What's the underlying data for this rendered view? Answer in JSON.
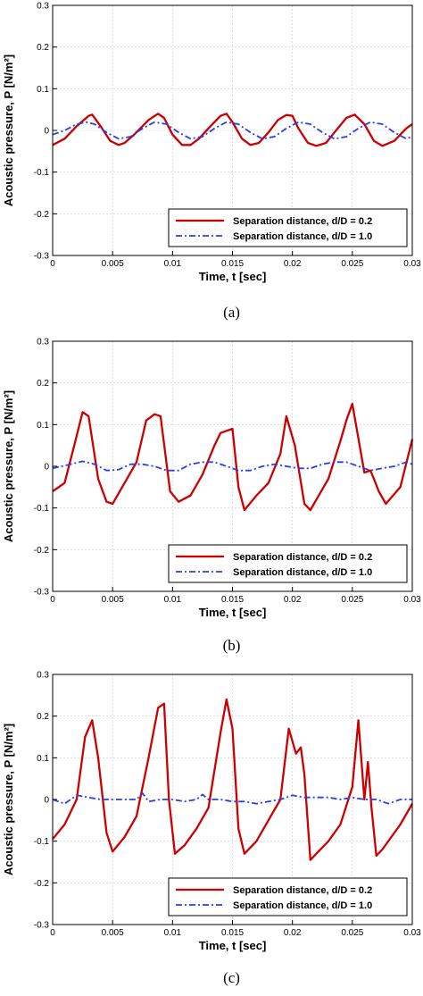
{
  "chart_data": [
    {
      "type": "line",
      "panel": "(a)",
      "xlabel": "Time, t [sec]",
      "ylabel": "Acoustic pressure, P [N/m²]",
      "xlim": [
        0,
        0.03
      ],
      "ylim": [
        -0.3,
        0.3
      ],
      "xticks": [
        0,
        0.005,
        0.01,
        0.015,
        0.02,
        0.025,
        0.03
      ],
      "xtick_labels": [
        "0",
        "0.005",
        "0.01",
        "0.015",
        "0.02",
        "0.025",
        "0.03"
      ],
      "yticks": [
        -0.3,
        -0.2,
        -0.1,
        0,
        0.1,
        0.2,
        0.3
      ],
      "ytick_labels": [
        "-0.3",
        "-0.2",
        "-0.1",
        "0",
        "0.1",
        "0.2",
        "0.3"
      ],
      "grid": true,
      "legend_position": "bottom-right",
      "series": [
        {
          "name": "Separation distance, d/D = 0.2",
          "color": "#cc0000",
          "style": "solid",
          "x": [
            0,
            0.001,
            0.002,
            0.003,
            0.0033,
            0.004,
            0.0048,
            0.0055,
            0.006,
            0.0068,
            0.008,
            0.0088,
            0.0093,
            0.01,
            0.0108,
            0.0115,
            0.0122,
            0.013,
            0.014,
            0.0145,
            0.015,
            0.0158,
            0.0165,
            0.0172,
            0.018,
            0.0188,
            0.0195,
            0.02,
            0.0205,
            0.0213,
            0.022,
            0.0228,
            0.0235,
            0.0245,
            0.0252,
            0.026,
            0.0268,
            0.0275,
            0.0285,
            0.0295,
            0.03
          ],
          "y": [
            -0.035,
            -0.02,
            0.01,
            0.035,
            0.038,
            0.01,
            -0.025,
            -0.035,
            -0.03,
            -0.01,
            0.025,
            0.04,
            0.03,
            -0.01,
            -0.035,
            -0.035,
            -0.02,
            0.005,
            0.035,
            0.04,
            0.02,
            -0.02,
            -0.035,
            -0.03,
            -0.005,
            0.025,
            0.037,
            0.035,
            0.005,
            -0.03,
            -0.037,
            -0.03,
            -0.005,
            0.03,
            0.038,
            0.015,
            -0.025,
            -0.037,
            -0.025,
            0.005,
            0.015
          ]
        },
        {
          "name": "Separation distance, d/D = 1.0",
          "color": "#2a3fe6",
          "style": "dashdot",
          "x": [
            0,
            0.001,
            0.002,
            0.0028,
            0.0035,
            0.0045,
            0.0055,
            0.0065,
            0.0075,
            0.0085,
            0.0095,
            0.0105,
            0.0115,
            0.0125,
            0.0135,
            0.0145,
            0.0155,
            0.0165,
            0.0175,
            0.0185,
            0.0195,
            0.0205,
            0.0215,
            0.0225,
            0.0235,
            0.0245,
            0.0255,
            0.0265,
            0.0275,
            0.0285,
            0.0295,
            0.03
          ],
          "y": [
            -0.01,
            0.0,
            0.015,
            0.02,
            0.015,
            -0.005,
            -0.02,
            -0.015,
            0.005,
            0.02,
            0.015,
            -0.005,
            -0.02,
            -0.015,
            0.005,
            0.02,
            0.015,
            -0.005,
            -0.02,
            -0.015,
            0.005,
            0.02,
            0.015,
            -0.005,
            -0.02,
            -0.015,
            0.005,
            0.02,
            0.015,
            -0.005,
            -0.02,
            -0.015
          ]
        }
      ]
    },
    {
      "type": "line",
      "panel": "(b)",
      "xlabel": "Time, t [sec]",
      "ylabel": "Acoustic pressure, P [N/m²]",
      "xlim": [
        0,
        0.03
      ],
      "ylim": [
        -0.3,
        0.3
      ],
      "xticks": [
        0,
        0.005,
        0.01,
        0.015,
        0.02,
        0.025,
        0.03
      ],
      "xtick_labels": [
        "0",
        "0.005",
        "0.01",
        "0.015",
        "0.02",
        "0.025",
        "0.03"
      ],
      "yticks": [
        -0.3,
        -0.2,
        -0.1,
        0,
        0.1,
        0.2,
        0.3
      ],
      "ytick_labels": [
        "-0.3",
        "-0.2",
        "-0.1",
        "0",
        "0.1",
        "0.2",
        "0.3"
      ],
      "grid": true,
      "legend_position": "bottom-right",
      "series": [
        {
          "name": "Separation distance, d/D = 0.2",
          "color": "#cc0000",
          "style": "solid",
          "x": [
            0,
            0.001,
            0.0018,
            0.0025,
            0.003,
            0.0038,
            0.0045,
            0.005,
            0.006,
            0.007,
            0.0078,
            0.0085,
            0.009,
            0.0098,
            0.0105,
            0.0115,
            0.0125,
            0.0135,
            0.014,
            0.015,
            0.0155,
            0.016,
            0.017,
            0.018,
            0.019,
            0.0195,
            0.0202,
            0.021,
            0.0215,
            0.022,
            0.023,
            0.024,
            0.0245,
            0.025,
            0.026,
            0.0265,
            0.0268,
            0.0272,
            0.0278,
            0.029,
            0.03
          ],
          "y": [
            -0.06,
            -0.04,
            0.05,
            0.13,
            0.12,
            -0.03,
            -0.085,
            -0.09,
            -0.04,
            0.01,
            0.11,
            0.125,
            0.12,
            -0.06,
            -0.085,
            -0.07,
            -0.02,
            0.05,
            0.08,
            0.09,
            -0.05,
            -0.105,
            -0.07,
            -0.04,
            0.03,
            0.12,
            0.05,
            -0.09,
            -0.105,
            -0.08,
            -0.03,
            0.06,
            0.11,
            0.15,
            -0.015,
            -0.01,
            -0.03,
            -0.06,
            -0.09,
            -0.05,
            0.065
          ]
        },
        {
          "name": "Separation distance, d/D = 1.0",
          "color": "#2a3fe6",
          "style": "dashdot",
          "x": [
            0,
            0.0015,
            0.0025,
            0.0035,
            0.0045,
            0.0055,
            0.0065,
            0.0075,
            0.0085,
            0.0095,
            0.0105,
            0.0115,
            0.0125,
            0.0135,
            0.0145,
            0.0155,
            0.0165,
            0.0175,
            0.0185,
            0.0195,
            0.0205,
            0.0215,
            0.0225,
            0.0235,
            0.0245,
            0.0255,
            0.0265,
            0.0275,
            0.0285,
            0.0295,
            0.03
          ],
          "y": [
            -0.005,
            0.005,
            0.012,
            0.005,
            -0.01,
            -0.008,
            0.005,
            0.005,
            0.0,
            -0.01,
            -0.01,
            0.005,
            0.01,
            0.01,
            0.0,
            -0.01,
            -0.01,
            0.0,
            0.005,
            0.0,
            -0.005,
            -0.005,
            0.005,
            0.01,
            0.01,
            0.0,
            -0.01,
            -0.005,
            0.0,
            0.01,
            0.005
          ]
        }
      ]
    },
    {
      "type": "line",
      "panel": "(c)",
      "xlabel": "Time, t [sec]",
      "ylabel": "Acoustic pressure, P [N/m²]",
      "xlim": [
        0,
        0.03
      ],
      "ylim": [
        -0.3,
        0.3
      ],
      "xticks": [
        0,
        0.005,
        0.01,
        0.015,
        0.02,
        0.025,
        0.03
      ],
      "xtick_labels": [
        "0",
        "0.005",
        "0.01",
        "0.015",
        "0.02",
        "0.025",
        "0.03"
      ],
      "yticks": [
        -0.3,
        -0.2,
        -0.1,
        0,
        0.1,
        0.2,
        0.3
      ],
      "ytick_labels": [
        "-0.3",
        "-0.2",
        "-0.1",
        "0",
        "0.1",
        "0.2",
        "0.3"
      ],
      "grid": true,
      "legend_position": "bottom-right",
      "series": [
        {
          "name": "Separation distance, d/D = 0.2",
          "color": "#cc0000",
          "style": "solid",
          "x": [
            0,
            0.001,
            0.002,
            0.0027,
            0.0033,
            0.0038,
            0.0045,
            0.005,
            0.006,
            0.007,
            0.008,
            0.0088,
            0.0093,
            0.0097,
            0.0102,
            0.011,
            0.012,
            0.013,
            0.014,
            0.0145,
            0.015,
            0.0155,
            0.016,
            0.017,
            0.018,
            0.019,
            0.0197,
            0.0203,
            0.0207,
            0.021,
            0.0215,
            0.022,
            0.023,
            0.024,
            0.025,
            0.0255,
            0.026,
            0.0263,
            0.0266,
            0.027,
            0.0275,
            0.029,
            0.03
          ],
          "y": [
            -0.095,
            -0.06,
            0.0,
            0.15,
            0.19,
            0.1,
            -0.08,
            -0.125,
            -0.09,
            -0.04,
            0.1,
            0.22,
            0.23,
            0.0,
            -0.13,
            -0.11,
            -0.07,
            -0.02,
            0.16,
            0.24,
            0.17,
            -0.07,
            -0.13,
            -0.1,
            -0.05,
            0.0,
            0.17,
            0.11,
            0.125,
            0.06,
            -0.145,
            -0.13,
            -0.1,
            -0.06,
            0.03,
            0.19,
            0.0,
            0.09,
            -0.02,
            -0.135,
            -0.12,
            -0.06,
            -0.01
          ]
        },
        {
          "name": "Separation distance, d/D = 1.0",
          "color": "#2a3fe6",
          "style": "dashdot",
          "x": [
            0,
            0.001,
            0.002,
            0.003,
            0.004,
            0.005,
            0.006,
            0.007,
            0.0075,
            0.008,
            0.009,
            0.01,
            0.011,
            0.012,
            0.0125,
            0.013,
            0.014,
            0.015,
            0.016,
            0.017,
            0.018,
            0.019,
            0.02,
            0.021,
            0.022,
            0.023,
            0.024,
            0.025,
            0.026,
            0.027,
            0.028,
            0.029,
            0.03
          ],
          "y": [
            0.0,
            -0.01,
            0.01,
            0.005,
            0.0,
            0.0,
            0.0,
            0.0,
            0.015,
            -0.005,
            0.0,
            0.0,
            -0.005,
            0.0,
            0.012,
            0.0,
            0.0,
            -0.005,
            -0.005,
            -0.01,
            -0.005,
            0.0,
            0.01,
            0.005,
            0.005,
            0.005,
            0.0,
            0.005,
            0.0,
            0.0,
            -0.01,
            0.0,
            0.0
          ]
        }
      ]
    }
  ]
}
